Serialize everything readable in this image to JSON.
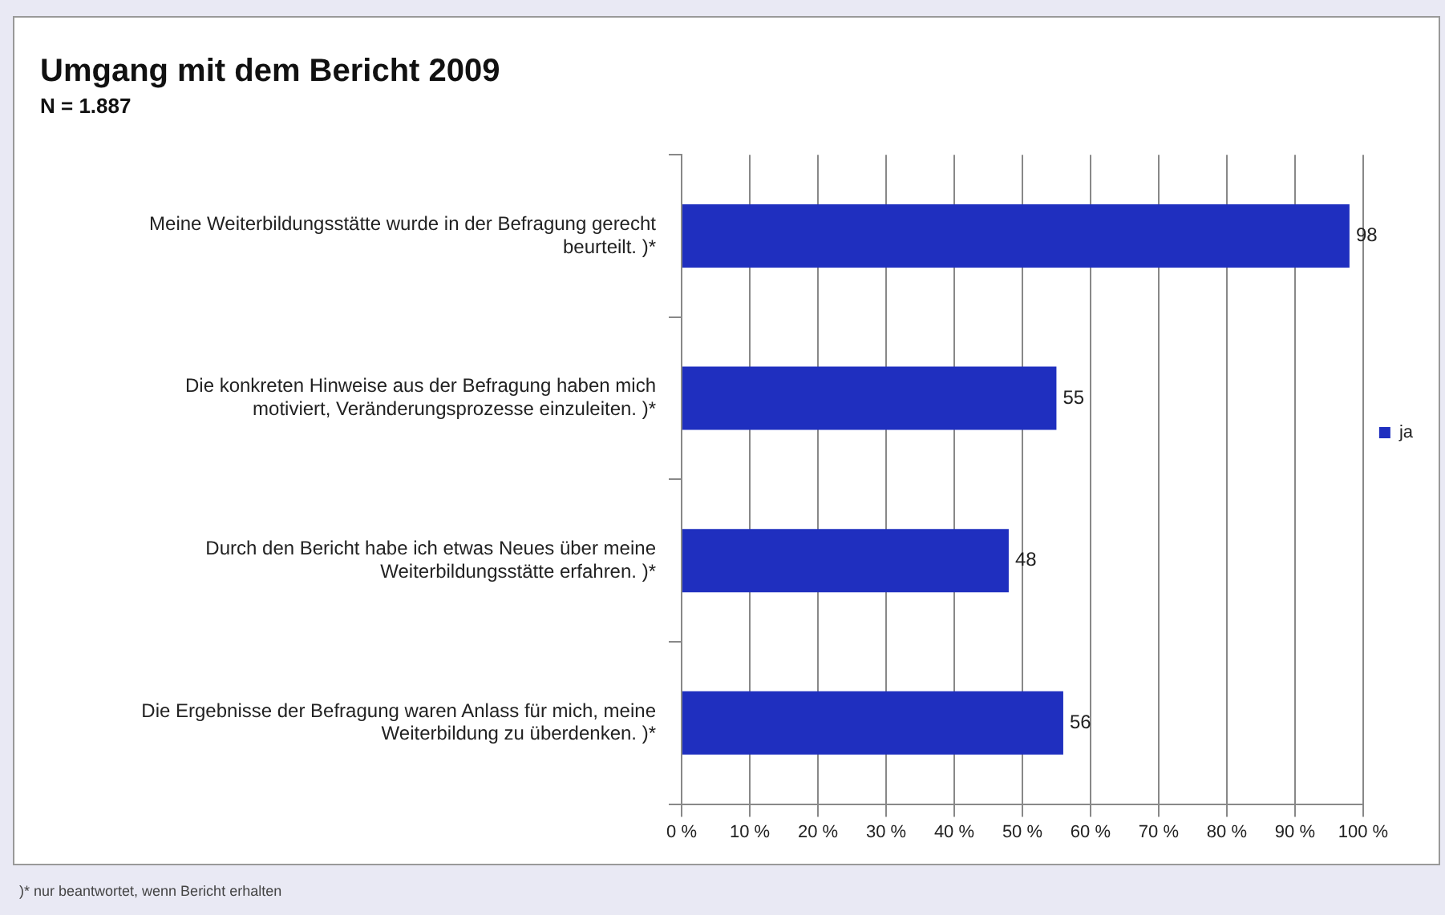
{
  "chart_data": {
    "type": "bar",
    "orientation": "horizontal",
    "title": "Umgang mit dem Bericht 2009",
    "subtitle": "N = 1.887",
    "categories": [
      "Meine Weiterbildungsstätte wurde in der Befragung gerecht beurteilt. )*",
      "Die konkreten Hinweise aus der Befragung haben mich motiviert, Veränderungsprozesse einzuleiten. )*",
      "Durch den Bericht habe ich etwas Neues über meine Weiterbildungsstätte erfahren. )*",
      "Die Ergebnisse der Befragung waren Anlass für mich, meine Weiterbildung zu überdenken. )*"
    ],
    "series": [
      {
        "name": "ja",
        "color": "#1f2fbf",
        "values": [
          98,
          55,
          48,
          56
        ]
      }
    ],
    "xlim": [
      0,
      100
    ],
    "xticks": [
      {
        "value": 0,
        "label": "0 %"
      },
      {
        "value": 10,
        "label": "10 %"
      },
      {
        "value": 20,
        "label": "20 %"
      },
      {
        "value": 30,
        "label": "30 %"
      },
      {
        "value": 40,
        "label": "40 %"
      },
      {
        "value": 50,
        "label": "50 %"
      },
      {
        "value": 60,
        "label": "60 %"
      },
      {
        "value": 70,
        "label": "70 %"
      },
      {
        "value": 80,
        "label": "80 %"
      },
      {
        "value": 90,
        "label": "90 %"
      },
      {
        "value": 100,
        "label": "100 %"
      }
    ],
    "grid": "x",
    "legend": "right",
    "data_labels": true,
    "annotations": [
      ")* nur beantwortet, wenn Bericht erhalten"
    ]
  }
}
